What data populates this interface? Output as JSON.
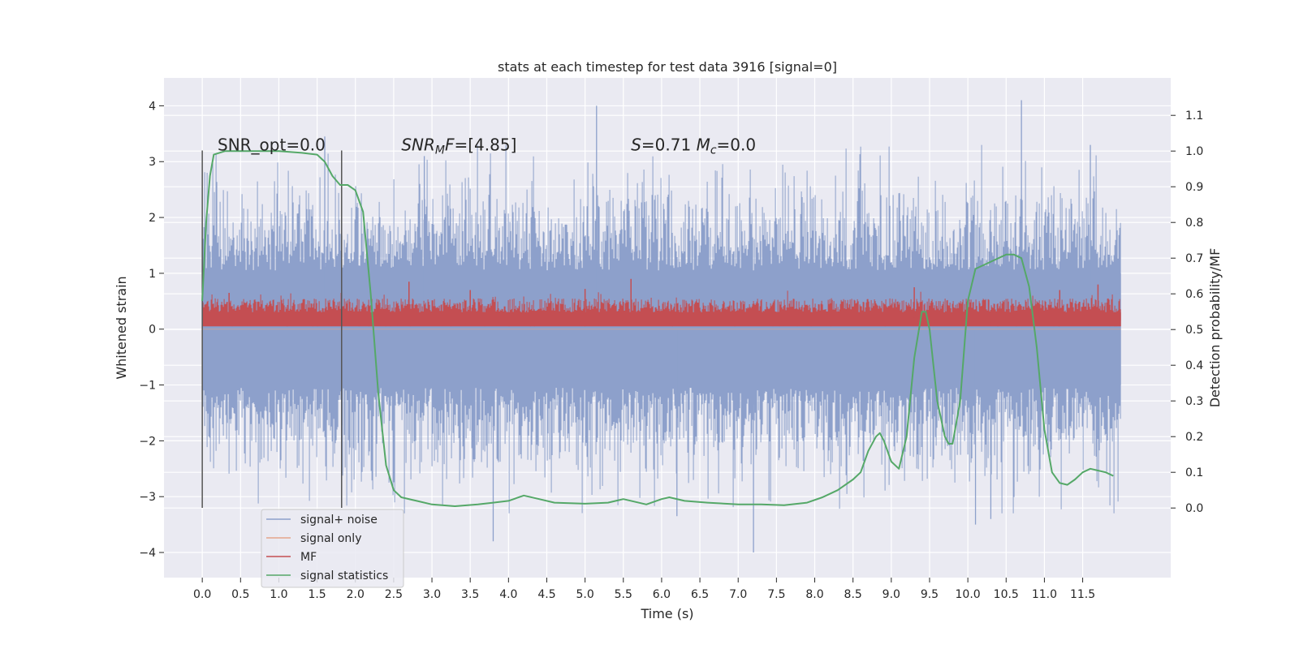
{
  "chart_data": {
    "type": "line",
    "title": "stats at each timestep for test data 3916 [signal=0]",
    "xlabel": "Time (s)",
    "ylabel": "Whitened strain",
    "y2label": "Detection probability/MF",
    "xlim": [
      -0.5,
      12.65
    ],
    "ylim": [
      -4.45,
      4.5
    ],
    "y2lim": [
      -0.195,
      1.205
    ],
    "xticks": [
      0.0,
      0.5,
      1.0,
      1.5,
      2.0,
      2.5,
      3.0,
      3.5,
      4.0,
      4.5,
      5.0,
      5.5,
      6.0,
      6.5,
      7.0,
      7.5,
      8.0,
      8.5,
      9.0,
      9.5,
      10.0,
      10.5,
      11.0,
      11.5
    ],
    "xtick_labels": [
      "0.0",
      "0.5",
      "1.0",
      "1.5",
      "2.0",
      "2.5",
      "3.0",
      "3.5",
      "4.0",
      "4.5",
      "5.0",
      "5.5",
      "6.0",
      "6.5",
      "7.0",
      "7.5",
      "8.0",
      "8.5",
      "9.0",
      "9.5",
      "10.0",
      "10.5",
      "11.0",
      "11.5"
    ],
    "yticks": [
      -4,
      -3,
      -2,
      -1,
      0,
      1,
      2,
      3,
      4
    ],
    "ytick_labels": [
      "−4",
      "−3",
      "−2",
      "−1",
      "0",
      "1",
      "2",
      "3",
      "4"
    ],
    "y2ticks": [
      0.0,
      0.1,
      0.2,
      0.3,
      0.4,
      0.5,
      0.6,
      0.7,
      0.8,
      0.9,
      1.0,
      1.1
    ],
    "y2tick_labels": [
      "0.0",
      "0.1",
      "0.2",
      "0.3",
      "0.4",
      "0.5",
      "0.6",
      "0.7",
      "0.8",
      "0.9",
      "1.0",
      "1.1"
    ],
    "grid": true,
    "legend_position": "bottom-left",
    "annotations": [
      {
        "id": "snr-opt",
        "parts": [
          {
            "t": "SNR_opt=0.0",
            "i": false
          }
        ],
        "x": 0.2,
        "y": 3.2
      },
      {
        "id": "snr-mf",
        "parts": [
          {
            "t": "SNR",
            "i": true
          },
          {
            "t": "M",
            "i": true,
            "sub": true
          },
          {
            "t": "F",
            "i": true
          },
          {
            "t": "=[4.85]",
            "i": false
          }
        ],
        "x": 2.6,
        "y": 3.2
      },
      {
        "id": "s-mc",
        "parts": [
          {
            "t": "S",
            "i": true
          },
          {
            "t": "=0.71   ",
            "i": false
          },
          {
            "t": "M",
            "i": true
          },
          {
            "t": "c",
            "i": true,
            "sub": true
          },
          {
            "t": "=0.0",
            "i": false
          }
        ],
        "x": 5.6,
        "y": 3.2
      }
    ],
    "vertical_markers": [
      {
        "x": 0.0,
        "y_range": [
          -3.2,
          3.2
        ]
      },
      {
        "x": 1.82,
        "y_range": [
          -3.2,
          3.2
        ]
      }
    ],
    "series": [
      {
        "name": "signal+ noise",
        "axis": "left",
        "color": "#8da0cb",
        "kind": "noise",
        "x_range": [
          0.0,
          12.0
        ],
        "envelope": [
          1.0,
          -1.0
        ],
        "peaks": [
          [
            1.6,
            3.45
          ],
          [
            2.9,
            3.1
          ],
          [
            5.15,
            4.0
          ],
          [
            10.7,
            4.1
          ],
          [
            11.6,
            3.3
          ],
          [
            10.1,
            -3.5
          ],
          [
            7.2,
            -4.0
          ],
          [
            3.8,
            -3.8
          ],
          [
            6.2,
            -3.35
          ],
          [
            10.3,
            -3.4
          ]
        ]
      },
      {
        "name": "signal only",
        "axis": "left",
        "color": "#e5a48b",
        "kind": "flat",
        "x_range": [
          0.0,
          12.0
        ],
        "values": [
          0.0
        ]
      },
      {
        "name": "MF",
        "axis": "left",
        "color": "#c44e52",
        "kind": "mf",
        "x_range": [
          0.0,
          12.0
        ],
        "base": 0.05,
        "typical_max": 0.55,
        "peaks": [
          [
            5.6,
            0.9
          ],
          [
            2.7,
            0.85
          ],
          [
            0.35,
            0.65
          ],
          [
            5.0,
            0.72
          ],
          [
            9.3,
            0.75
          ],
          [
            11.7,
            0.8
          ],
          [
            11.2,
            0.7
          ],
          [
            3.5,
            0.7
          ]
        ]
      },
      {
        "name": "signal statistics",
        "axis": "right",
        "color": "#55a868",
        "kind": "line",
        "x": [
          0.0,
          0.05,
          0.1,
          0.15,
          0.3,
          0.6,
          1.0,
          1.3,
          1.5,
          1.6,
          1.7,
          1.8,
          1.9,
          2.0,
          2.1,
          2.2,
          2.3,
          2.4,
          2.5,
          2.6,
          2.8,
          3.0,
          3.3,
          3.6,
          3.8,
          4.0,
          4.2,
          4.4,
          4.6,
          5.0,
          5.3,
          5.5,
          5.8,
          6.0,
          6.1,
          6.3,
          6.6,
          7.0,
          7.3,
          7.6,
          7.9,
          8.1,
          8.3,
          8.5,
          8.6,
          8.7,
          8.8,
          8.85,
          8.9,
          9.0,
          9.1,
          9.2,
          9.3,
          9.4,
          9.45,
          9.5,
          9.6,
          9.7,
          9.75,
          9.8,
          9.9,
          10.0,
          10.1,
          10.3,
          10.5,
          10.6,
          10.7,
          10.8,
          10.9,
          11.0,
          11.1,
          11.2,
          11.3,
          11.4,
          11.5,
          11.6,
          11.7,
          11.8,
          11.9
        ],
        "values": [
          0.58,
          0.8,
          0.93,
          0.99,
          1.0,
          1.0,
          1.0,
          0.995,
          0.99,
          0.97,
          0.93,
          0.905,
          0.905,
          0.89,
          0.83,
          0.6,
          0.32,
          0.12,
          0.05,
          0.03,
          0.02,
          0.01,
          0.005,
          0.01,
          0.015,
          0.02,
          0.035,
          0.025,
          0.015,
          0.012,
          0.015,
          0.025,
          0.01,
          0.025,
          0.03,
          0.02,
          0.015,
          0.01,
          0.01,
          0.008,
          0.015,
          0.03,
          0.05,
          0.08,
          0.1,
          0.16,
          0.2,
          0.21,
          0.19,
          0.13,
          0.11,
          0.2,
          0.42,
          0.55,
          0.55,
          0.5,
          0.3,
          0.2,
          0.18,
          0.18,
          0.3,
          0.58,
          0.67,
          0.69,
          0.71,
          0.71,
          0.7,
          0.62,
          0.45,
          0.22,
          0.1,
          0.07,
          0.065,
          0.08,
          0.1,
          0.11,
          0.105,
          0.1,
          0.09
        ]
      }
    ]
  }
}
